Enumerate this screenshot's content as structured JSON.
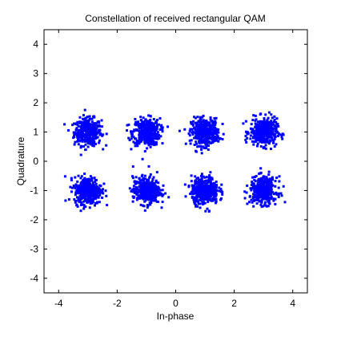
{
  "chart_data": {
    "type": "scatter",
    "title": "Constellation of received rectangular QAM",
    "xlabel": "In-phase",
    "ylabel": "Quadrature",
    "xlim": [
      -4.5,
      4.5
    ],
    "ylim": [
      -4.5,
      4.5
    ],
    "xticks": [
      -4,
      -2,
      0,
      2,
      4
    ],
    "yticks": [
      -4,
      -3,
      -2,
      -1,
      0,
      1,
      2,
      3,
      4
    ],
    "grid": false,
    "legend": "none",
    "marker_color": "#0000ff",
    "marker": "dot",
    "points_per_cluster": 400,
    "noise_std": 0.23,
    "clusters": [
      {
        "x": -3,
        "y": 1
      },
      {
        "x": -1,
        "y": 1
      },
      {
        "x": 1,
        "y": 1
      },
      {
        "x": 3,
        "y": 1
      },
      {
        "x": -3,
        "y": -1
      },
      {
        "x": -1,
        "y": -1
      },
      {
        "x": 1,
        "y": -1
      },
      {
        "x": 3,
        "y": -1
      }
    ]
  }
}
